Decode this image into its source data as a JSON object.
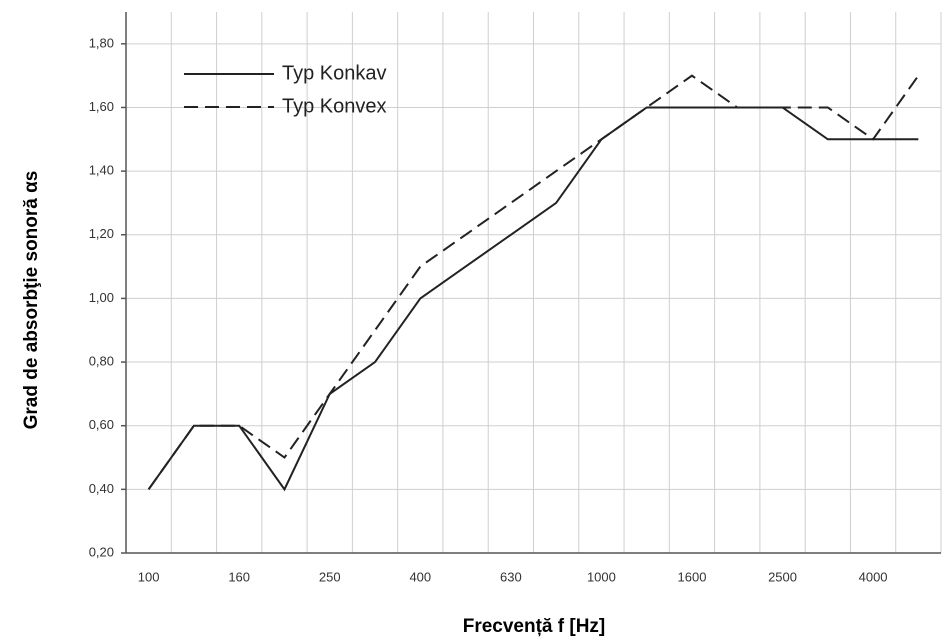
{
  "chart_data": {
    "type": "line",
    "x_label": "Frecvență f [Hz]",
    "y_label": "Grad de absorbţie sonoră αs",
    "categories": [
      "100",
      null,
      "160",
      null,
      "250",
      null,
      "400",
      null,
      "630",
      null,
      "1000",
      null,
      "1600",
      null,
      "2500",
      null,
      "4000",
      null
    ],
    "series": [
      {
        "name": "Typ Konkav",
        "color": "#222222",
        "line_style": "solid",
        "values": [
          0.4,
          0.6,
          0.6,
          0.4,
          0.7,
          0.8,
          1.0,
          1.1,
          1.2,
          1.3,
          1.5,
          1.6,
          1.6,
          1.6,
          1.6,
          1.5,
          1.5,
          1.5
        ]
      },
      {
        "name": "Typ Konvex",
        "color": "#222222",
        "line_style": "dashed",
        "values": [
          0.4,
          0.6,
          0.6,
          0.5,
          0.7,
          0.9,
          1.1,
          1.2,
          1.3,
          1.4,
          1.5,
          1.6,
          1.7,
          1.6,
          1.6,
          1.6,
          1.5,
          1.7
        ]
      }
    ],
    "ylim": [
      0.2,
      1.9
    ],
    "yticks": [
      {
        "value": 0.2,
        "label": "0,20"
      },
      {
        "value": 0.4,
        "label": "0,40"
      },
      {
        "value": 0.6,
        "label": "0,60"
      },
      {
        "value": 0.8,
        "label": "0,80"
      },
      {
        "value": 1.0,
        "label": "1,00"
      },
      {
        "value": 1.2,
        "label": "1,20"
      },
      {
        "value": 1.4,
        "label": "1,40"
      },
      {
        "value": 1.6,
        "label": "1,60"
      },
      {
        "value": 1.8,
        "label": "1,80"
      }
    ],
    "grid": true,
    "legend": "upper left"
  }
}
